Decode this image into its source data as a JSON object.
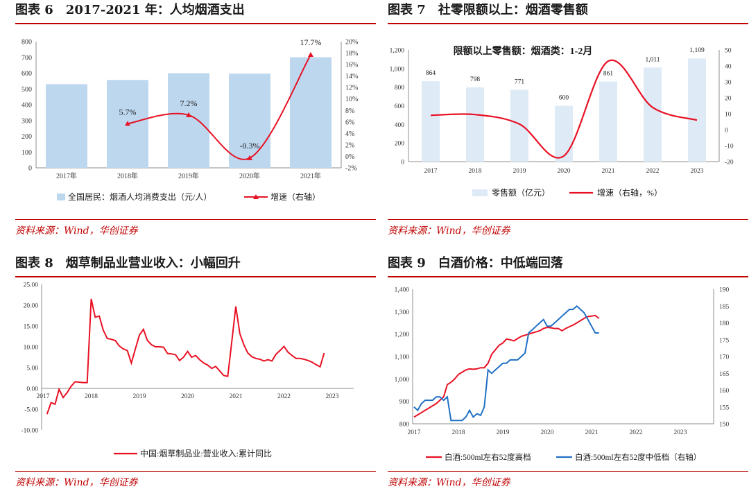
{
  "charts": [
    {
      "title": "图表 6　2017-2021 年：人均烟酒支出",
      "source": "资料来源：Wind，华创证券",
      "chart_data": {
        "type": "bar",
        "categories": [
          "2017年",
          "2018年",
          "2019年",
          "2020年",
          "2021年"
        ],
        "series": [
          {
            "name": "全国居民：烟酒人均消费支出（元/人）",
            "axis": "left",
            "type": "bar",
            "values": [
              530,
              557,
              600,
              597,
              701
            ]
          },
          {
            "name": "增速（右轴）",
            "axis": "right",
            "type": "line",
            "values": [
              null,
              5.7,
              7.2,
              -0.3,
              17.7
            ],
            "labels": [
              "",
              "5.7%",
              "7.2%",
              "-0.3%",
              "17.7%"
            ]
          }
        ],
        "ylim_left": [
          0,
          800
        ],
        "yticks_left": [
          0,
          100,
          200,
          300,
          400,
          500,
          600,
          700,
          800
        ],
        "ylim_right": [
          -2,
          20
        ],
        "yticks_right": [
          "-2%",
          "0%",
          "2%",
          "4%",
          "6%",
          "8%",
          "10%",
          "12%",
          "14%",
          "16%",
          "18%",
          "20%"
        ],
        "legend": "bottom",
        "colors": {
          "bar": "#bdd7ee",
          "line": "#e81123"
        }
      }
    },
    {
      "title": "图表 7　社零限额以上：烟酒零售额",
      "source": "资料来源：Wind，华创证券",
      "chart_data": {
        "type": "bar",
        "inner_title": "限额以上零售额：烟酒类：1-2月",
        "categories": [
          "2017",
          "2018",
          "2019",
          "2020",
          "2021",
          "2022",
          "2023"
        ],
        "series": [
          {
            "name": "零售额（亿元）",
            "axis": "left",
            "type": "bar",
            "values": [
              864,
              798,
              771,
              600,
              861,
              1011,
              1109
            ],
            "labels": [
              "864",
              "798",
              "771",
              "600",
              "861",
              "1,011",
              "1,109"
            ]
          },
          {
            "name": "增速（右轴，%）",
            "axis": "right",
            "type": "line",
            "values": [
              9,
              9.5,
              3.5,
              -16.5,
              43,
              14,
              6
            ]
          }
        ],
        "ylim_left": [
          0,
          1200
        ],
        "yticks_left": [
          "0",
          "200",
          "400",
          "600",
          "800",
          "1,000",
          "1,200"
        ],
        "ylim_right": [
          -20,
          50
        ],
        "yticks_right": [
          "-20",
          "-10",
          "0",
          "10",
          "20",
          "30",
          "40",
          "50"
        ],
        "legend": "bottom",
        "colors": {
          "bar": "#deebf7",
          "line": "#e81123"
        }
      }
    },
    {
      "title": "图表 8　烟草制品业营业收入：小幅回升",
      "source": "资料来源：Wind，华创证券",
      "chart_data": {
        "type": "line",
        "series": [
          {
            "name": "中国:烟草制品业:营业收入:累计同比",
            "values": [
              -6.2,
              -3.4,
              -3.8,
              -0.2,
              -2.2,
              -1,
              0.5,
              1.6,
              1.5,
              1.4,
              1.4,
              21.5,
              17.1,
              17.4,
              14,
              12,
              11.8,
              11.5,
              10.2,
              9.5,
              9.1,
              6.1,
              9.5,
              12.8,
              14.2,
              11.5,
              10.5,
              10,
              10,
              9.9,
              8.4,
              8.3,
              8.1,
              6.7,
              7.5,
              8.9,
              7.5,
              7.9,
              6.9,
              6.1,
              5.6,
              4.8,
              5.3,
              4.2,
              3.1,
              2.9,
              11.2,
              19.7,
              13.2,
              10.5,
              8.5,
              7.6,
              7.2,
              7,
              6.6,
              6.9,
              6.6,
              8.2,
              9.1,
              10.1,
              8.7,
              7.9,
              7.2,
              7.2,
              7,
              6.7,
              6.3,
              5.7,
              5.2,
              8.5
            ]
          }
        ],
        "x_start": "2017-02",
        "x_step": "month",
        "xticks": [
          "2017",
          "2018",
          "2019",
          "2020",
          "2021",
          "2022",
          "2023"
        ],
        "ylim": [
          -10,
          25
        ],
        "yticks": [
          "-10.00",
          "-5.00",
          "0.00",
          "5.00",
          "10.00",
          "15.00",
          "20.00",
          "25.00"
        ],
        "legend": "bottom",
        "colors": {
          "line": "#e81123"
        }
      }
    },
    {
      "title": "图表 9　白酒价格：中低端回落",
      "source": "资料来源：Wind，华创证券",
      "chart_data": {
        "type": "line",
        "xticks": [
          "2017",
          "2018",
          "2019",
          "2020",
          "2021",
          "2022",
          "2023"
        ],
        "x_start": 2017.0,
        "x_step_years": 0.0833,
        "series": [
          {
            "name": "白酒:500ml左右52度高档",
            "axis": "left",
            "values": [
              830,
              840,
              850,
              860,
              870,
              880,
              890,
              905,
              920,
              975,
              985,
              1000,
              1020,
              1030,
              1040,
              1045,
              1043,
              1045,
              1050,
              1050,
              1070,
              1110,
              1130,
              1150,
              1160,
              1178,
              1175,
              1170,
              1180,
              1190,
              1195,
              1200,
              1205,
              1210,
              1215,
              1225,
              1230,
              1228,
              1225,
              1225,
              1215,
              1225,
              1233,
              1240,
              1250,
              1260,
              1270,
              1278,
              1280,
              1283,
              1270
            ]
          },
          {
            "name": "白酒:500ml左右52度中低档（右轴）",
            "axis": "right",
            "values": [
              155,
              154,
              156,
              157,
              157,
              157,
              158,
              158,
              157,
              158,
              151,
              151,
              151,
              151,
              152,
              154,
              152,
              153,
              152.5,
              155,
              166,
              165,
              166,
              167,
              168,
              168,
              169,
              169,
              169,
              170,
              171,
              177,
              178,
              179,
              180,
              181,
              179,
              179,
              180,
              181,
              182,
              183,
              184,
              184,
              185,
              184,
              183,
              181,
              179,
              177,
              177
            ]
          }
        ],
        "ylim_left": [
          800,
          1400
        ],
        "yticks_left": [
          "800",
          "900",
          "1,000",
          "1,100",
          "1,200",
          "1,300",
          "1,400"
        ],
        "ylim_right": [
          150,
          190
        ],
        "yticks_right": [
          "150",
          "155",
          "160",
          "165",
          "170",
          "175",
          "180",
          "185",
          "190"
        ],
        "legend": "bottom",
        "colors": {
          "left": "#e81123",
          "right": "#1f6fc5"
        }
      }
    }
  ]
}
